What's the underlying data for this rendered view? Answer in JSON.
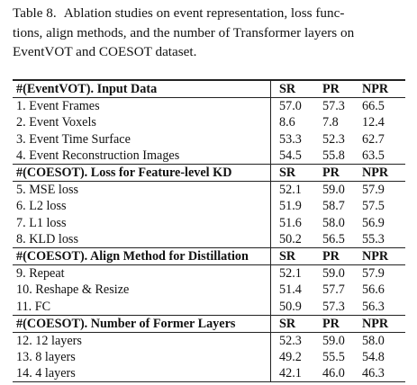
{
  "caption": {
    "label": "Table 8.",
    "lines": [
      "Ablation studies on event representation, loss func-",
      "tions, align methods, and the number of Transformer layers on",
      "EventVOT and COESOT dataset."
    ]
  },
  "table": {
    "sections": [
      {
        "header": [
          "#(EventVOT). Input Data",
          "SR",
          "PR",
          "NPR"
        ],
        "rows": [
          [
            "1. Event Frames",
            "57.0",
            "57.3",
            "66.5"
          ],
          [
            "2. Event Voxels",
            "8.6",
            "7.8",
            "12.4"
          ],
          [
            "3. Event Time Surface",
            "53.3",
            "52.3",
            "62.7"
          ],
          [
            "4. Event Reconstruction Images",
            "54.5",
            "55.8",
            "63.5"
          ]
        ]
      },
      {
        "header": [
          "#(COESOT). Loss for Feature-level KD",
          "SR",
          "PR",
          "NPR"
        ],
        "rows": [
          [
            "5. MSE loss",
            "52.1",
            "59.0",
            "57.9"
          ],
          [
            "6. L2 loss",
            "51.9",
            "58.7",
            "57.5"
          ],
          [
            "7. L1 loss",
            "51.6",
            "58.0",
            "56.9"
          ],
          [
            "8. KLD loss",
            "50.2",
            "56.5",
            "55.3"
          ]
        ]
      },
      {
        "header": [
          "#(COESOT). Align Method for Distillation",
          "SR",
          "PR",
          "NPR"
        ],
        "rows": [
          [
            "9. Repeat",
            "52.1",
            "59.0",
            "57.9"
          ],
          [
            "10. Reshape & Resize",
            "51.4",
            "57.7",
            "56.6"
          ],
          [
            "11. FC",
            "50.9",
            "57.3",
            "56.3"
          ]
        ]
      },
      {
        "header": [
          "#(COESOT). Number of Former Layers",
          "SR",
          "PR",
          "NPR"
        ],
        "rows": [
          [
            "12. 12 layers",
            "52.3",
            "59.0",
            "58.0"
          ],
          [
            "13. 8 layers",
            "49.2",
            "55.5",
            "54.8"
          ],
          [
            "14. 4 layers",
            "42.1",
            "46.0",
            "46.3"
          ]
        ]
      }
    ]
  }
}
